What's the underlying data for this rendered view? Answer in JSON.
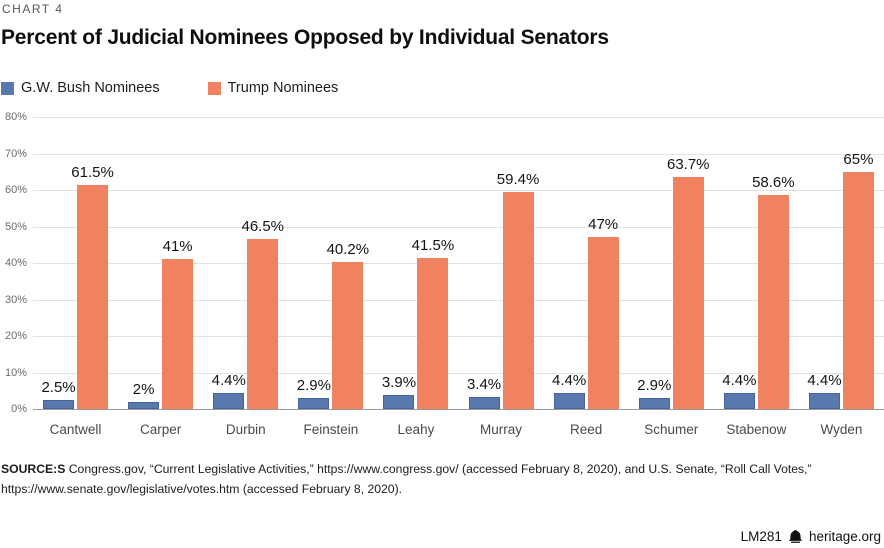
{
  "chart_label": "CHART 4",
  "title": "Percent of Judicial Nominees Opposed by Individual Senators",
  "legend": [
    {
      "label": "G.W. Bush Nominees",
      "color": "#5878AE"
    },
    {
      "label": "Trump Nominees",
      "color": "#F08262"
    }
  ],
  "chart_data": {
    "type": "bar",
    "title": "Percent of Judicial Nominees Opposed by Individual Senators",
    "categories": [
      "Cantwell",
      "Carper",
      "Durbin",
      "Feinstein",
      "Leahy",
      "Murray",
      "Reed",
      "Schumer",
      "Stabenow",
      "Wyden"
    ],
    "series": [
      {
        "name": "G.W. Bush Nominees",
        "color": "#5878AE",
        "border_color": "#44659B",
        "values": [
          2.5,
          2,
          4.4,
          2.9,
          3.9,
          3.4,
          4.4,
          2.9,
          4.4,
          4.4
        ]
      },
      {
        "name": "Trump Nominees",
        "color": "#F08262",
        "border_color": "#F08262",
        "values": [
          61.5,
          41,
          46.5,
          40.2,
          41.5,
          59.4,
          47,
          63.7,
          58.6,
          65
        ]
      }
    ],
    "value_label_suffix": "%",
    "xlabel": "",
    "ylabel": "",
    "ylim": [
      0,
      80
    ],
    "ytick_step": 10,
    "ytick_suffix": "%",
    "grid": true,
    "legend_position": "top-left"
  },
  "source": {
    "label": "SOURCE:S",
    "line1": "Congress.gov, “Current Legislative Activities,” https://www.congress.gov/ (accessed February 8, 2020), and U.S. Senate, “Roll Call Votes,”",
    "line2": "https://www.senate.gov/legislative/votes.htm (accessed February 8, 2020)."
  },
  "footer": {
    "report_id": "LM281",
    "logo_icon": "liberty-bell-icon",
    "brand": "heritage.org"
  }
}
